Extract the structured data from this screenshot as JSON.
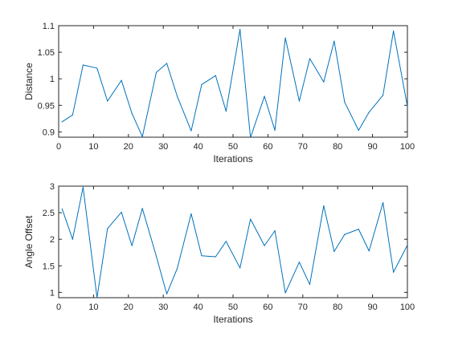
{
  "colors": {
    "background": "#ffffff",
    "axes": "#262626",
    "series": "#0072BD"
  },
  "chart_data": [
    {
      "type": "line",
      "title": "",
      "xlabel": "Iterations",
      "ylabel": "Distance",
      "xlim": [
        0,
        100
      ],
      "ylim": [
        0.89,
        1.1
      ],
      "xticks": [
        0,
        10,
        20,
        30,
        40,
        50,
        60,
        70,
        80,
        90,
        100
      ],
      "xtick_labels": [
        "0",
        "10",
        "20",
        "30",
        "40",
        "50",
        "60",
        "70",
        "80",
        "90",
        "100"
      ],
      "yticks": [
        0.9,
        0.95,
        1.0,
        1.05,
        1.1
      ],
      "ytick_labels": [
        "0.9",
        "0.95",
        "1",
        "1.05",
        "1.1"
      ],
      "grid": false,
      "series": [
        {
          "x": [
            1,
            4,
            7,
            11,
            14,
            18,
            21,
            24,
            28,
            31,
            34,
            38,
            41,
            45,
            48,
            52,
            55,
            59,
            62,
            65,
            69,
            72,
            76,
            79,
            82,
            86,
            89,
            93,
            96,
            100
          ],
          "y": [
            0.919,
            0.932,
            1.026,
            1.02,
            0.958,
            0.997,
            0.935,
            0.891,
            1.012,
            1.029,
            0.967,
            0.902,
            0.989,
            1.006,
            0.939,
            1.093,
            0.889,
            0.967,
            0.903,
            1.077,
            0.958,
            1.038,
            0.994,
            1.071,
            0.956,
            0.903,
            0.937,
            0.969,
            1.09,
            0.948
          ]
        }
      ]
    },
    {
      "type": "line",
      "title": "",
      "xlabel": "Iterations",
      "ylabel": "Angle Offset",
      "xlim": [
        0,
        100
      ],
      "ylim": [
        0.9,
        3.0
      ],
      "xticks": [
        0,
        10,
        20,
        30,
        40,
        50,
        60,
        70,
        80,
        90,
        100
      ],
      "xtick_labels": [
        "0",
        "10",
        "20",
        "30",
        "40",
        "50",
        "60",
        "70",
        "80",
        "90",
        "100"
      ],
      "yticks": [
        1.0,
        1.5,
        2.0,
        2.5,
        3.0
      ],
      "ytick_labels": [
        "1",
        "1.5",
        "2",
        "2.5",
        "3"
      ],
      "grid": false,
      "series": [
        {
          "x": [
            1,
            4,
            7,
            11,
            14,
            18,
            21,
            24,
            28,
            31,
            34,
            38,
            41,
            45,
            48,
            52,
            55,
            59,
            62,
            65,
            69,
            72,
            76,
            79,
            82,
            86,
            89,
            93,
            96,
            100
          ],
          "y": [
            2.57,
            2.0,
            2.98,
            0.9,
            2.2,
            2.51,
            1.88,
            2.58,
            1.68,
            0.97,
            1.45,
            2.48,
            1.69,
            1.67,
            1.96,
            1.46,
            2.38,
            1.88,
            2.16,
            0.99,
            1.57,
            1.15,
            2.63,
            1.77,
            2.09,
            2.19,
            1.78,
            2.69,
            1.38,
            1.89
          ]
        }
      ]
    }
  ]
}
